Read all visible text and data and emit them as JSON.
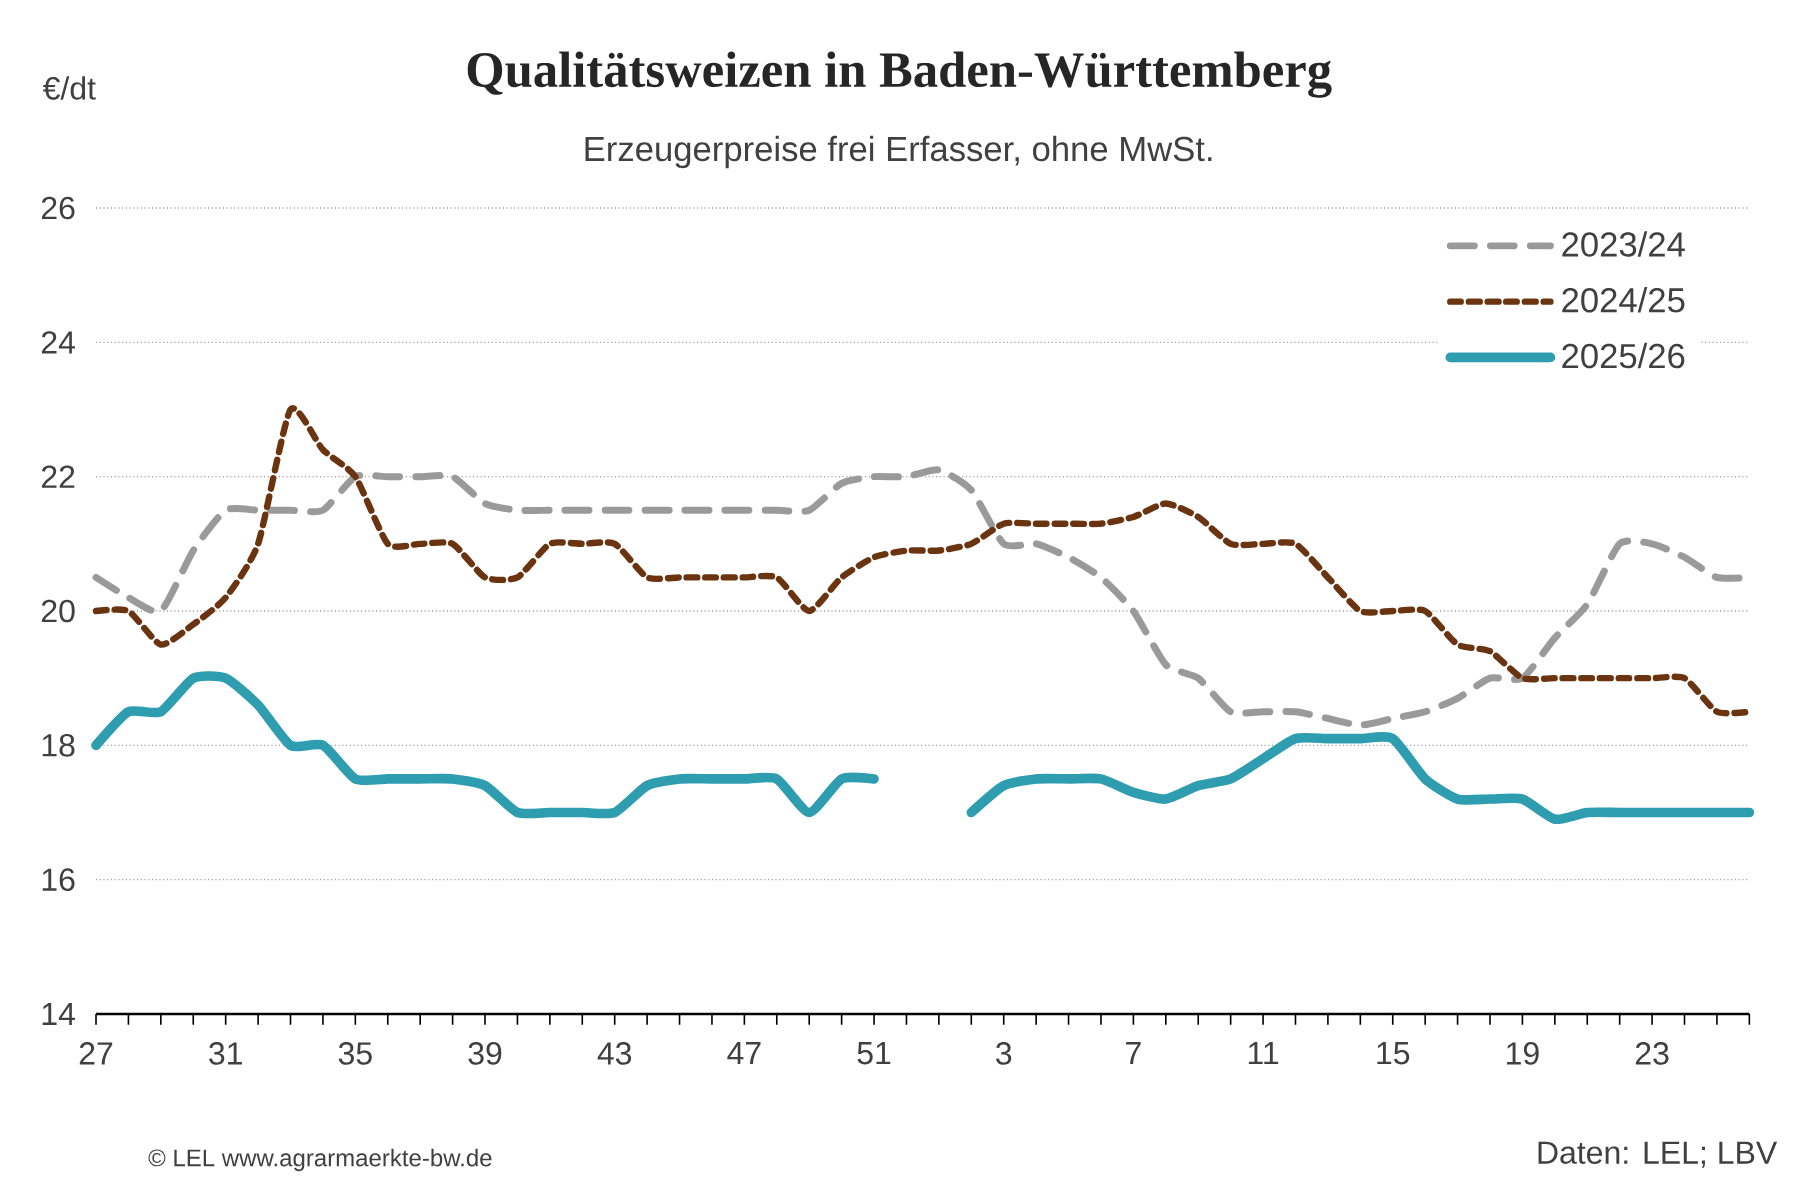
{
  "chart_data": {
    "type": "line",
    "title": "Qualitätsweizen in Baden-Württemberg",
    "subtitle": "Erzeugerpreise frei Erfasser, ohne MwSt.",
    "ylabel": "€/dt",
    "categories": [
      "27",
      null,
      null,
      null,
      "31",
      null,
      null,
      null,
      "35",
      null,
      null,
      null,
      "39",
      null,
      null,
      null,
      "43",
      null,
      null,
      null,
      "47",
      null,
      null,
      null,
      "51",
      null,
      null,
      null,
      "3",
      null,
      null,
      null,
      "7",
      null,
      null,
      null,
      "11",
      null,
      null,
      null,
      "15",
      null,
      null,
      null,
      "19",
      null,
      null,
      null,
      "23",
      null,
      null,
      null
    ],
    "series": [
      {
        "name": "2023/24",
        "color": "#9a9a9a",
        "line_style": "dashed",
        "values": [
          20.5,
          20.2,
          20.0,
          20.9,
          21.5,
          21.5,
          21.5,
          21.5,
          22.0,
          22.0,
          22.0,
          22.0,
          21.6,
          21.5,
          21.5,
          21.5,
          21.5,
          21.5,
          21.5,
          21.5,
          21.5,
          21.5,
          21.5,
          21.9,
          22.0,
          22.0,
          22.1,
          21.8,
          21.0,
          21.0,
          20.8,
          20.5,
          20.0,
          19.2,
          19.0,
          18.5,
          18.5,
          18.5,
          18.4,
          18.3,
          18.4,
          18.5,
          18.7,
          19.0,
          19.0,
          19.6,
          20.1,
          21.0,
          21.0,
          20.8,
          20.5,
          20.5
        ]
      },
      {
        "name": "2024/25",
        "color": "#6b3410",
        "line_style": "dotted",
        "values": [
          20.0,
          20.0,
          19.5,
          19.8,
          20.2,
          21.0,
          23.0,
          22.4,
          22.0,
          21.0,
          21.0,
          21.0,
          20.5,
          20.5,
          21.0,
          21.0,
          21.0,
          20.5,
          20.5,
          20.5,
          20.5,
          20.5,
          20.0,
          20.5,
          20.8,
          20.9,
          20.9,
          21.0,
          21.3,
          21.3,
          21.3,
          21.3,
          21.4,
          21.6,
          21.4,
          21.0,
          21.0,
          21.0,
          20.5,
          20.0,
          20.0,
          20.0,
          19.5,
          19.4,
          19.0,
          19.0,
          19.0,
          19.0,
          19.0,
          19.0,
          18.5,
          18.5
        ]
      },
      {
        "name": "2025/26",
        "color": "#2e9db0",
        "line_style": "solid",
        "values": [
          18.0,
          18.5,
          18.5,
          19.0,
          19.0,
          18.6,
          18.0,
          18.0,
          17.5,
          17.5,
          17.5,
          17.5,
          17.4,
          17.0,
          17.0,
          17.0,
          17.0,
          17.4,
          17.5,
          17.5,
          17.5,
          17.5,
          17.0,
          17.5,
          17.5,
          null,
          null,
          17.0,
          17.4,
          17.5,
          17.5,
          17.5,
          17.3,
          17.2,
          17.4,
          17.5,
          17.8,
          18.1,
          18.1,
          18.1,
          18.1,
          17.5,
          17.2,
          17.2,
          17.2,
          16.9,
          17.0,
          17.0,
          17.0,
          17.0,
          17.0,
          17.0
        ]
      }
    ],
    "ylim": [
      14,
      26
    ],
    "yticks": [
      14,
      16,
      18,
      20,
      22,
      24,
      26
    ],
    "grid": "y",
    "legend": "top right",
    "marker": "none",
    "annotations": [
      "© LEL www.agrarmaerkte-bw.de",
      "Daten: LEL; LBV"
    ]
  }
}
